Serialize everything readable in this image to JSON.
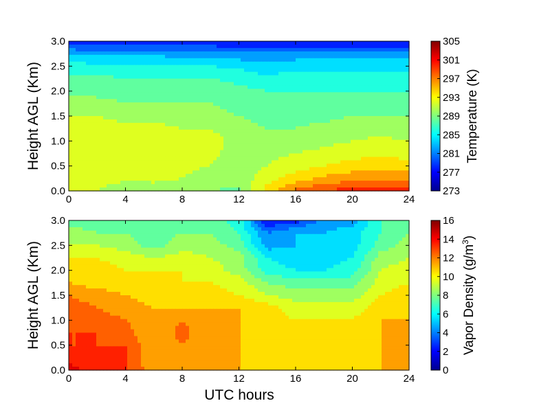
{
  "figure": {
    "xlabel": "UTC hours"
  },
  "chart_data": [
    {
      "type": "heatmap",
      "ylabel": "Height AGL (Km)",
      "xlim": [
        0,
        24
      ],
      "ylim": [
        0.0,
        3.0
      ],
      "x_ticks": [
        "0",
        "4",
        "8",
        "12",
        "16",
        "20",
        "24"
      ],
      "y_ticks": [
        "0.0",
        "0.5",
        "1.0",
        "1.5",
        "2.0",
        "2.5",
        "3.0"
      ],
      "colorbar": {
        "label": "Temperature (K)",
        "range": [
          273,
          305
        ],
        "ticks": [
          "273",
          "277",
          "281",
          "285",
          "289",
          "293",
          "297",
          "301",
          "305"
        ]
      },
      "x_hours": [
        0,
        2,
        4,
        6,
        8,
        10,
        12,
        14,
        16,
        18,
        20,
        22,
        24
      ],
      "heights_km": [
        0.0,
        0.25,
        0.5,
        0.75,
        1.0,
        1.25,
        1.5,
        1.75,
        2.0,
        2.25,
        2.5,
        2.75,
        3.0
      ],
      "values": [
        [
          291,
          291,
          289.5,
          290,
          290,
          289,
          288.5,
          294,
          297.5,
          299,
          300,
          300.5,
          300
        ],
        [
          292,
          292,
          291.5,
          291.5,
          291,
          290,
          290,
          292,
          294,
          295.5,
          296,
          296.5,
          296
        ],
        [
          292,
          292,
          292,
          292,
          291.5,
          291,
          290,
          291,
          292,
          293,
          294,
          294.5,
          294
        ],
        [
          292,
          292,
          292,
          292,
          292,
          291.5,
          290,
          290.5,
          291,
          291.5,
          292,
          292.5,
          292
        ],
        [
          292,
          292,
          292,
          292,
          291.5,
          292,
          290,
          290,
          290,
          290.5,
          291,
          291.5,
          291
        ],
        [
          291.5,
          291.5,
          291.5,
          291.5,
          291,
          291,
          289.5,
          289,
          289,
          289.5,
          290,
          290,
          290
        ],
        [
          291,
          291,
          290.5,
          290.5,
          290,
          290,
          289,
          288.5,
          288.5,
          288.5,
          289,
          289,
          289
        ],
        [
          289.5,
          289.5,
          289,
          289,
          289,
          289,
          288,
          287.5,
          287.5,
          287.5,
          288,
          288,
          288
        ],
        [
          288.5,
          288.5,
          288.5,
          288,
          288,
          288,
          287.5,
          287,
          287,
          287,
          287,
          287,
          287
        ],
        [
          287.5,
          287.5,
          287,
          287,
          287,
          287,
          286.5,
          285.5,
          286,
          286,
          286,
          286,
          286
        ],
        [
          286,
          285.5,
          285.5,
          285.5,
          285,
          285,
          284.5,
          283.5,
          284.5,
          284.5,
          284.5,
          284.5,
          284.5
        ],
        [
          283,
          282.5,
          282.5,
          282.5,
          282,
          282,
          281.5,
          281.5,
          281.5,
          281.5,
          281.5,
          281.5,
          281.5
        ],
        [
          277,
          277,
          277,
          277,
          277,
          277,
          277,
          277,
          277,
          277,
          277,
          277,
          277
        ]
      ]
    },
    {
      "type": "heatmap",
      "ylabel": "Height AGL (Km)",
      "xlabel": "UTC hours",
      "xlim": [
        0,
        24
      ],
      "ylim": [
        0.0,
        3.0
      ],
      "x_ticks": [
        "0",
        "4",
        "8",
        "12",
        "16",
        "20",
        "24"
      ],
      "y_ticks": [
        "0.0",
        "0.5",
        "1.0",
        "1.5",
        "2.0",
        "2.5",
        "3.0"
      ],
      "colorbar": {
        "label": "Vapor Density (g/m",
        "label_sup": "3",
        "label_end": ")",
        "range": [
          0,
          16
        ],
        "ticks": [
          "0",
          "2",
          "4",
          "6",
          "8",
          "10",
          "12",
          "14",
          "16"
        ]
      },
      "x_hours": [
        0,
        2,
        4,
        6,
        8,
        10,
        12,
        14,
        16,
        18,
        20,
        22,
        24
      ],
      "heights_km": [
        0.0,
        0.25,
        0.5,
        0.75,
        1.0,
        1.25,
        1.5,
        1.75,
        2.0,
        2.25,
        2.5,
        2.75,
        3.0
      ],
      "values": [
        [
          14.5,
          13.5,
          13,
          11.5,
          11.5,
          11.5,
          11,
          10.5,
          10.5,
          10.5,
          10.5,
          11,
          11
        ],
        [
          13.5,
          13,
          13,
          11,
          11.5,
          11,
          11,
          10.5,
          10,
          10,
          10,
          11,
          11
        ],
        [
          13,
          13,
          13,
          11,
          12,
          11,
          11,
          10.5,
          10,
          10,
          10,
          11,
          11
        ],
        [
          13,
          13,
          12.5,
          11,
          12.5,
          11,
          11,
          10.5,
          10,
          10,
          10,
          11,
          11
        ],
        [
          12.5,
          12.5,
          12,
          11,
          12,
          11,
          11,
          10.5,
          10,
          10,
          10,
          11,
          11
        ],
        [
          12.5,
          12,
          11.5,
          11,
          11,
          11,
          11,
          10.5,
          9.5,
          9.5,
          9.5,
          10.5,
          11
        ],
        [
          12,
          11.5,
          11,
          10.5,
          10.5,
          10.5,
          10,
          9,
          8.5,
          8.5,
          8.5,
          10,
          10.5
        ],
        [
          11,
          10.5,
          10.5,
          10,
          10,
          10,
          9.5,
          8,
          7.5,
          7.5,
          7.5,
          9.5,
          10
        ],
        [
          10.5,
          10.5,
          10,
          10,
          10,
          9.5,
          8.5,
          6.5,
          6,
          6,
          6.5,
          9,
          9.5
        ],
        [
          10,
          10,
          9.5,
          9,
          9.5,
          9,
          8.5,
          6,
          5.5,
          5.5,
          6,
          8.5,
          9
        ],
        [
          9,
          9,
          8.5,
          7.5,
          8.5,
          8.5,
          7.5,
          4.5,
          5,
          5,
          5.5,
          7.5,
          8.5
        ],
        [
          8.5,
          8,
          8,
          7.5,
          8,
          8,
          7,
          4,
          5,
          5,
          5.5,
          7,
          8
        ],
        [
          7.5,
          7.5,
          7.5,
          7.5,
          7.5,
          7.5,
          6.5,
          2,
          2.5,
          4.5,
          4.5,
          7,
          7.5
        ]
      ]
    }
  ]
}
